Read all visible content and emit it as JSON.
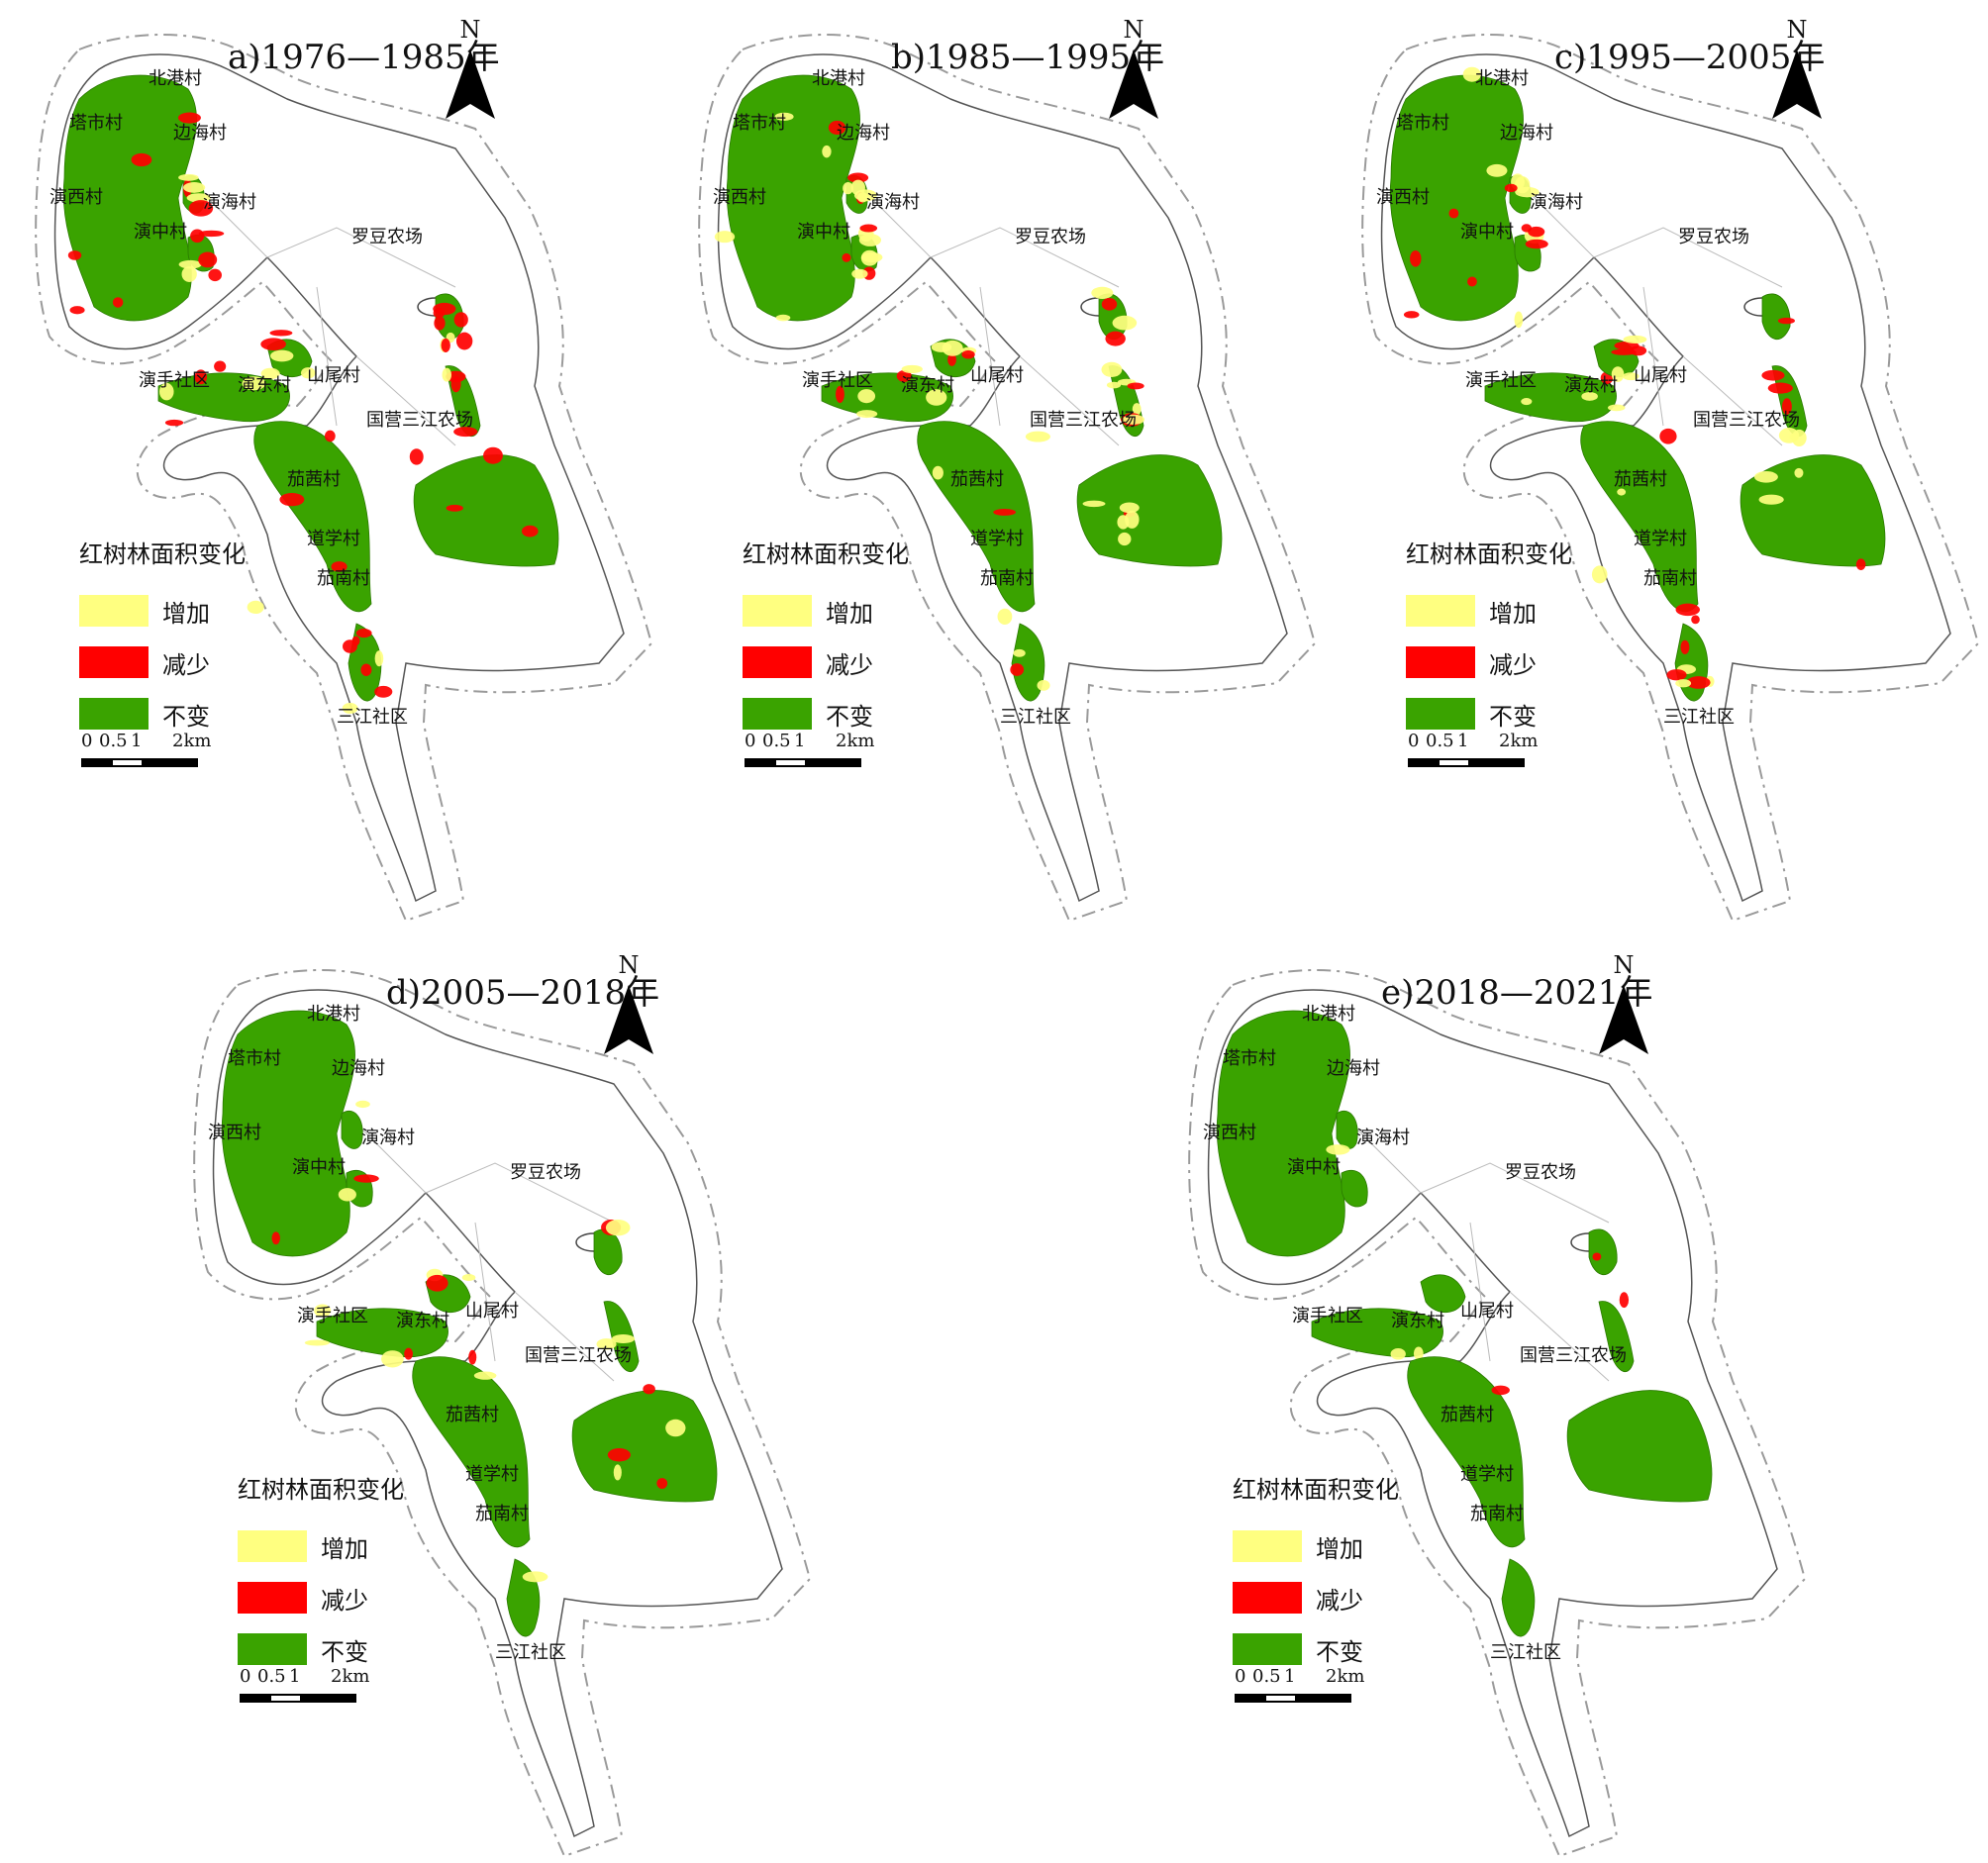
{
  "legend": {
    "title": "红树林面积变化",
    "items": [
      {
        "label": "增加",
        "color": "#ffff80"
      },
      {
        "label": "减少",
        "color": "#ff0000"
      },
      {
        "label": "不变",
        "color": "#3aa300"
      }
    ]
  },
  "north_label": "N",
  "scale": {
    "ticks": [
      "0",
      "0.5",
      "1",
      "2km"
    ]
  },
  "places": {
    "beigang": "北港村",
    "tashi": "塔市村",
    "bianhai": "边海村",
    "yanxi": "演西村",
    "yanhai": "演海村",
    "yanzhong": "演中村",
    "luodou": "罗豆农场",
    "yanshou": "演手社区",
    "yandong": "演东村",
    "shanwei": "山尾村",
    "guoying": "国营三江农场",
    "jiaxi": "茄茜村",
    "daoxue": "道学村",
    "jianan": "茄南村",
    "sanjiang": "三江社区"
  },
  "panels": [
    {
      "id": "a",
      "title": "a)1976—1985年",
      "mix": {
        "increase": 0.12,
        "decrease": 0.35
      }
    },
    {
      "id": "b",
      "title": "b)1985—1995年",
      "mix": {
        "increase": 0.3,
        "decrease": 0.18
      }
    },
    {
      "id": "c",
      "title": "c)1995—2005年",
      "mix": {
        "increase": 0.22,
        "decrease": 0.22
      }
    },
    {
      "id": "d",
      "title": "d)2005—2018年",
      "mix": {
        "increase": 0.18,
        "decrease": 0.08
      }
    },
    {
      "id": "e",
      "title": "e)2018—2021年",
      "mix": {
        "increase": 0.02,
        "decrease": 0.03
      }
    }
  ]
}
